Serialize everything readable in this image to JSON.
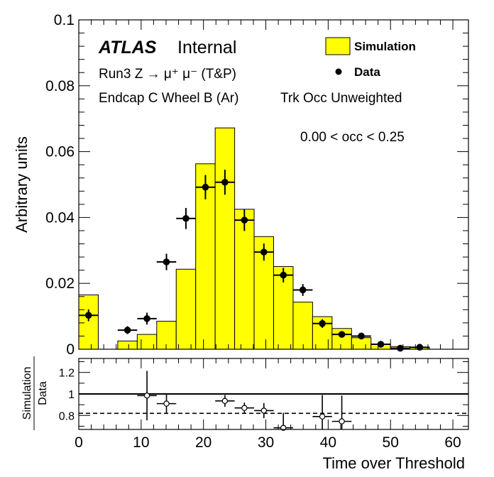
{
  "chart_data": [
    {
      "type": "histogram",
      "ylabel": "Arbitrary units",
      "ylim": [
        0,
        0.1
      ],
      "yticks": [
        "0",
        "0.02",
        "0.04",
        "0.06",
        "0.08",
        "0.1"
      ],
      "xlim": [
        0,
        62.5
      ],
      "annotations": {
        "experiment": "ATLAS",
        "status": "Internal",
        "line1": "Run3 Z → μ⁺ μ⁻ (T&P)",
        "line2": "Endcap C Wheel B (Ar)",
        "line3": "Trk Occ Unweighted",
        "cut": "0.00 < occ < 0.25"
      },
      "legend": {
        "position": "top-right",
        "entries": [
          {
            "label": "Simulation",
            "style": "fill",
            "color": "#ffff00"
          },
          {
            "label": "Data",
            "style": "marker",
            "color": "#000000"
          }
        ]
      },
      "series": [
        {
          "name": "Simulation",
          "kind": "filled-histogram",
          "bin_edges": [
            0,
            3.125,
            6.25,
            9.375,
            12.5,
            15.625,
            18.75,
            21.875,
            25,
            28.125,
            31.25,
            34.375,
            37.5,
            40.625,
            43.75,
            46.875,
            50,
            53.125,
            56.25
          ],
          "values": [
            0.0165,
            0,
            0.0025,
            0.0045,
            0.0085,
            0.0243,
            0.0563,
            0.0672,
            0.0425,
            0.0342,
            0.0251,
            0.0143,
            0.0099,
            0.0063,
            0.0035,
            0.0015,
            0.0008,
            0.0005
          ]
        },
        {
          "name": "Data",
          "kind": "points",
          "x": [
            1.5625,
            7.8125,
            10.9375,
            14.0625,
            17.1875,
            20.3125,
            23.4375,
            26.5625,
            29.6875,
            32.8125,
            35.9375,
            39.0625,
            42.1875,
            45.3125,
            48.4375,
            51.5625,
            54.6875
          ],
          "y": [
            0.0103,
            0.0058,
            0.0093,
            0.0265,
            0.0397,
            0.0492,
            0.0507,
            0.0392,
            0.0295,
            0.0225,
            0.018,
            0.0078,
            0.0045,
            0.004,
            0.0015,
            0.0003,
            0.0006
          ],
          "yerr": [
            0.0018,
            0.0012,
            0.0018,
            0.0025,
            0.0032,
            0.0037,
            0.0038,
            0.0033,
            0.0026,
            0.0022,
            0.0018,
            0.0013,
            0.0009,
            0.0008,
            0.0005,
            0.0003,
            0.0003
          ]
        }
      ]
    },
    {
      "type": "scatter",
      "ylabel_top": "Simulation",
      "ylabel_bottom": "Data",
      "xlabel": "Time over Threshold",
      "xlim": [
        0,
        62.5
      ],
      "ylim": [
        0.67,
        1.33
      ],
      "xticks": [
        "0",
        "10",
        "20",
        "30",
        "40",
        "50",
        "60"
      ],
      "yticks": [
        "0.8",
        "1",
        "1.2"
      ],
      "reference_lines": [
        {
          "y": 1.0,
          "style": "solid"
        },
        {
          "y": 0.82,
          "style": "dashed"
        }
      ],
      "series": [
        {
          "name": "ratio",
          "x": [
            10.9375,
            14.0625,
            23.4375,
            26.5625,
            29.6875,
            32.8125,
            39.0625,
            42.1875
          ],
          "y": [
            0.985,
            0.91,
            0.935,
            0.87,
            0.845,
            0.685,
            0.79,
            0.745
          ],
          "yerr": [
            0.23,
            0.09,
            0.055,
            0.05,
            0.07,
            0.14,
            0.2,
            0.24
          ]
        }
      ]
    }
  ]
}
